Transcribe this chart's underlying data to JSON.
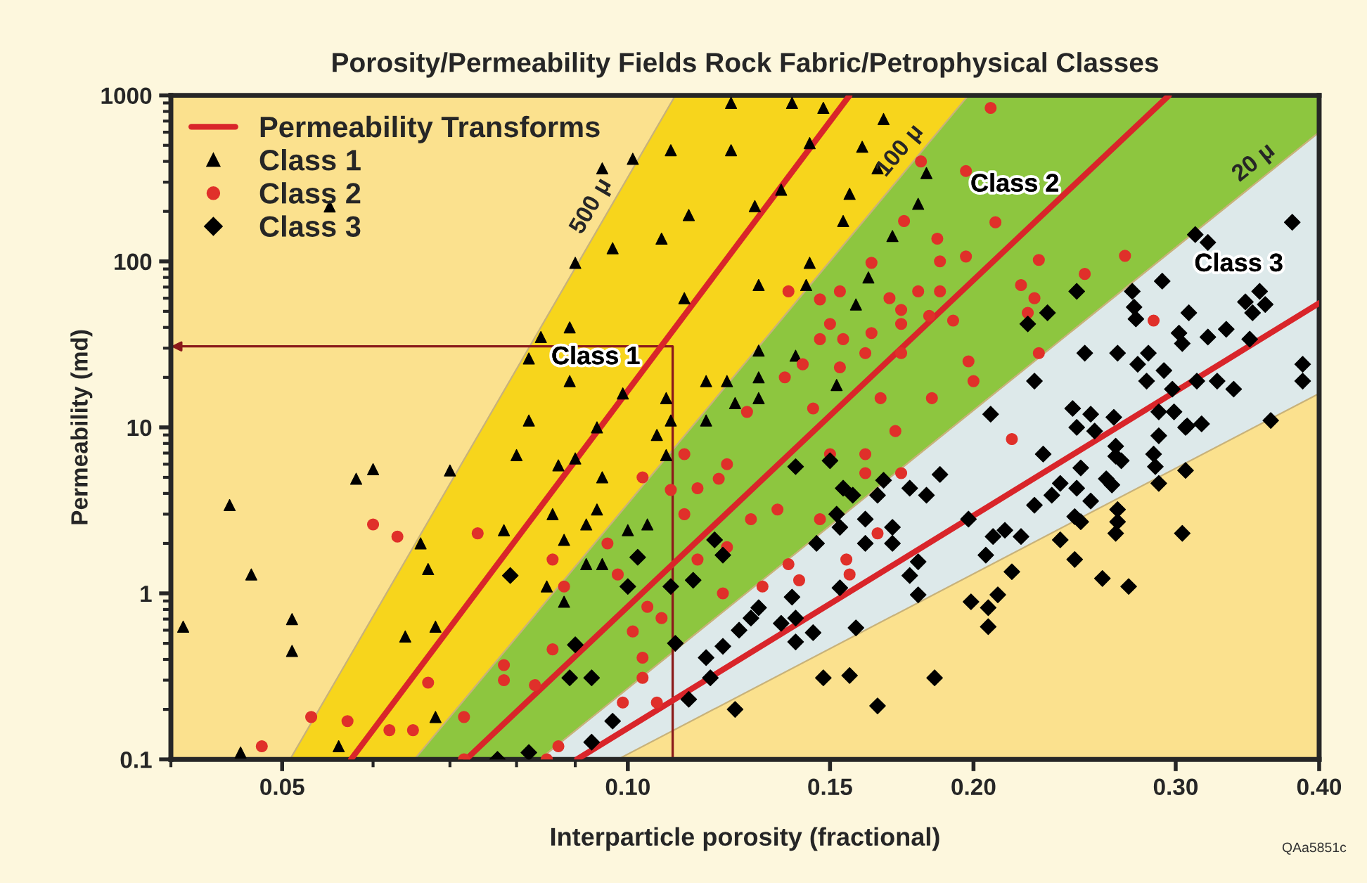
{
  "chart_data": {
    "type": "scatter",
    "title": "Porosity/Permeability Fields Rock Fabric/Petrophysical Classes",
    "xlabel": "Interparticle porosity (fractional)",
    "ylabel": "Permeability (md)",
    "log": "xy",
    "xlim": [
      0.04,
      0.4
    ],
    "ylim": [
      0.1,
      1000
    ],
    "xticks": [
      {
        "value": 0.05,
        "label": "0.05"
      },
      {
        "value": 0.1,
        "label": "0.10"
      },
      {
        "value": 0.15,
        "label": "0.15"
      },
      {
        "value": 0.2,
        "label": "0.20"
      },
      {
        "value": 0.3,
        "label": "0.30"
      },
      {
        "value": 0.4,
        "label": "0.40"
      }
    ],
    "yticks": [
      0.1,
      1,
      10,
      100,
      1000
    ],
    "legend": "top left",
    "series": [
      {
        "type": "area",
        "name": "500 μ",
        "color": "#f7d51c",
        "x": [
          0.0508,
          0.11,
          0.198,
          0.0652
        ],
        "values": [
          0.1,
          1000,
          1000,
          0.1
        ]
      },
      {
        "type": "area",
        "name": "100 μ",
        "color": "#8dc63f",
        "x": [
          0.0652,
          0.198,
          0.4,
          0.4,
          0.0838
        ],
        "values": [
          0.1,
          1000,
          1000,
          600,
          0.1
        ]
      },
      {
        "type": "area",
        "name": "20 μ",
        "color": "#dde9ea",
        "x": [
          0.0838,
          0.4,
          0.4,
          0.098
        ],
        "values": [
          0.1,
          600,
          16,
          0.1
        ]
      },
      {
        "type": "line",
        "name": "Permeability Transforms",
        "color": "#d9252a",
        "x": [
          0.0574,
          0.156
        ],
        "values": [
          0.1,
          1000
        ]
      },
      {
        "type": "line",
        "color": "#d9252a",
        "x": [
          0.0723,
          0.296
        ],
        "values": [
          0.1,
          1000
        ]
      },
      {
        "type": "line",
        "color": "#d9252a",
        "x": [
          0.0903,
          0.4
        ],
        "values": [
          0.1,
          56
        ]
      },
      {
        "name": "Class 1",
        "color": "#000000",
        "marker": "triangle",
        "x": [
          0.041,
          0.045,
          0.047,
          0.051,
          0.051,
          0.046,
          0.058,
          0.06,
          0.07,
          0.066,
          0.067,
          0.064,
          0.068,
          0.068,
          0.056,
          0.055,
          0.101,
          0.095,
          0.09,
          0.109,
          0.123,
          0.123,
          0.097,
          0.113,
          0.107,
          0.112,
          0.089,
          0.084,
          0.082,
          0.089,
          0.099,
          0.108,
          0.082,
          0.094,
          0.109,
          0.117,
          0.122,
          0.117,
          0.124,
          0.106,
          0.139,
          0.148,
          0.167,
          0.144,
          0.16,
          0.165,
          0.182,
          0.136,
          0.156,
          0.129,
          0.179,
          0.154,
          0.17,
          0.144,
          0.13,
          0.143,
          0.162,
          0.158,
          0.13,
          0.14,
          0.13,
          0.152,
          0.13,
          0.08,
          0.087,
          0.09,
          0.095,
          0.086,
          0.094,
          0.078,
          0.092,
          0.088,
          0.1,
          0.104,
          0.092,
          0.095,
          0.085,
          0.088,
          0.108
        ],
        "values": [
          0.63,
          3.4,
          1.3,
          0.7,
          0.45,
          0.11,
          4.9,
          5.6,
          5.5,
          2.0,
          1.4,
          0.55,
          0.63,
          0.18,
          0.12,
          214,
          415,
          363,
          98,
          467,
          467,
          900,
          120,
          190,
          137,
          60,
          40,
          35,
          26,
          19,
          16,
          15,
          11,
          10,
          11,
          11,
          19,
          19,
          14,
          9,
          900,
          840,
          720,
          515,
          490,
          363,
          340,
          270,
          255,
          215,
          222,
          175,
          142,
          98,
          72,
          72,
          80,
          55,
          29,
          27,
          20,
          18,
          15,
          6.8,
          5.9,
          6.5,
          5.0,
          3.0,
          3.2,
          2.4,
          2.6,
          2.1,
          2.4,
          2.6,
          1.5,
          1.5,
          1.1,
          0.89,
          6.8
        ]
      },
      {
        "name": "Class 2",
        "color": "#e0302a",
        "marker": "circle",
        "x": [
          0.048,
          0.053,
          0.057,
          0.06,
          0.063,
          0.062,
          0.065,
          0.067,
          0.072,
          0.074,
          0.072,
          0.078,
          0.078,
          0.083,
          0.086,
          0.086,
          0.088,
          0.096,
          0.098,
          0.103,
          0.109,
          0.112,
          0.115,
          0.112,
          0.12,
          0.122,
          0.122,
          0.121,
          0.101,
          0.104,
          0.107,
          0.103,
          0.103,
          0.099,
          0.106,
          0.087,
          0.085,
          0.115,
          0.207,
          0.18,
          0.197,
          0.174,
          0.209,
          0.186,
          0.163,
          0.187,
          0.197,
          0.228,
          0.271,
          0.25,
          0.138,
          0.147,
          0.153,
          0.169,
          0.179,
          0.187,
          0.22,
          0.226,
          0.173,
          0.183,
          0.192,
          0.15,
          0.163,
          0.173,
          0.154,
          0.147,
          0.161,
          0.173,
          0.153,
          0.142,
          0.137,
          0.198,
          0.166,
          0.184,
          0.2,
          0.127,
          0.145,
          0.171,
          0.228,
          0.223,
          0.287,
          0.216,
          0.173,
          0.128,
          0.135,
          0.147,
          0.155,
          0.156,
          0.141,
          0.131,
          0.138,
          0.165,
          0.15,
          0.161,
          0.161
        ],
        "values": [
          0.12,
          0.18,
          0.17,
          2.6,
          2.2,
          0.15,
          0.15,
          0.29,
          0.18,
          2.3,
          0.1,
          0.37,
          0.3,
          0.28,
          0.46,
          1.6,
          1.1,
          2.0,
          1.3,
          5.0,
          4.2,
          6.9,
          4.3,
          3.0,
          4.9,
          6.0,
          1.9,
          1.0,
          0.59,
          0.83,
          0.71,
          0.41,
          0.31,
          0.22,
          0.22,
          0.12,
          0.1,
          1.6,
          840,
          400,
          350,
          175,
          172,
          137,
          98,
          100,
          107,
          102,
          108,
          84,
          66,
          59,
          66,
          60,
          66,
          66,
          72,
          60,
          51,
          47,
          44,
          42,
          37,
          42,
          34,
          34,
          28,
          28,
          23,
          24,
          20,
          25,
          15,
          15,
          19,
          12.4,
          13,
          9.5,
          28,
          49,
          44,
          8.5,
          5.3,
          2.8,
          3.2,
          2.8,
          1.6,
          1.3,
          1.2,
          1.1,
          1.5,
          2.3,
          6.9,
          6.9,
          5.3
        ]
      },
      {
        "name": "Class 3",
        "color": "#000000",
        "marker": "diamond",
        "x": [
          0.079,
          0.082,
          0.077,
          0.089,
          0.093,
          0.09,
          0.093,
          0.097,
          0.102,
          0.1,
          0.109,
          0.114,
          0.11,
          0.113,
          0.117,
          0.121,
          0.118,
          0.124,
          0.125,
          0.128,
          0.119,
          0.121,
          0.14,
          0.15,
          0.154,
          0.157,
          0.152,
          0.153,
          0.146,
          0.161,
          0.161,
          0.167,
          0.165,
          0.17,
          0.17,
          0.176,
          0.182,
          0.187,
          0.179,
          0.179,
          0.176,
          0.158,
          0.153,
          0.145,
          0.14,
          0.139,
          0.14,
          0.136,
          0.13,
          0.148,
          0.156,
          0.165,
          0.185,
          0.199,
          0.206,
          0.206,
          0.21,
          0.216,
          0.205,
          0.208,
          0.213,
          0.22,
          0.198,
          0.226,
          0.234,
          0.23,
          0.238,
          0.246,
          0.255,
          0.248,
          0.246,
          0.253,
          0.245,
          0.248,
          0.238,
          0.245,
          0.259,
          0.261,
          0.264,
          0.266,
          0.266,
          0.267,
          0.267,
          0.266,
          0.273,
          0.269,
          0.287,
          0.288,
          0.29,
          0.29,
          0.306,
          0.306,
          0.304,
          0.316,
          0.379,
          0.312,
          0.32,
          0.292,
          0.275,
          0.276,
          0.277,
          0.308,
          0.345,
          0.355,
          0.35,
          0.359,
          0.348,
          0.332,
          0.302,
          0.304,
          0.32,
          0.284,
          0.267,
          0.278,
          0.293,
          0.283,
          0.298,
          0.313,
          0.326,
          0.337,
          0.387,
          0.387,
          0.25,
          0.226,
          0.244,
          0.253,
          0.265,
          0.29,
          0.299,
          0.307,
          0.363,
          0.207,
          0.246,
          0.223,
          0.232
        ],
        "values": [
          1.28,
          0.11,
          0.1,
          0.31,
          0.31,
          0.49,
          0.127,
          0.17,
          1.65,
          1.1,
          1.1,
          1.2,
          0.5,
          0.23,
          0.41,
          0.48,
          0.31,
          0.2,
          0.6,
          0.71,
          2.1,
          1.7,
          5.8,
          6.3,
          4.3,
          3.9,
          3.0,
          2.5,
          2.0,
          2.8,
          2.0,
          4.8,
          3.9,
          2.5,
          2.0,
          4.3,
          3.9,
          5.2,
          1.55,
          0.98,
          1.28,
          0.62,
          1.08,
          0.58,
          0.51,
          0.95,
          0.71,
          0.66,
          0.82,
          0.31,
          0.32,
          0.21,
          0.31,
          0.89,
          0.82,
          0.63,
          0.98,
          1.35,
          1.7,
          2.2,
          2.4,
          2.2,
          2.8,
          3.4,
          3.9,
          6.9,
          4.6,
          10,
          9.5,
          5.7,
          4.3,
          3.6,
          2.9,
          2.7,
          2.1,
          1.6,
          1.23,
          4.9,
          4.5,
          7.7,
          6.7,
          3.2,
          2.7,
          2.3,
          1.1,
          6.3,
          6.9,
          5.8,
          8.9,
          4.6,
          10,
          5.5,
          2.3,
          10.5,
          172,
          145,
          130,
          76,
          66,
          53,
          45,
          49,
          57,
          66,
          49,
          55,
          34,
          39,
          37,
          32,
          35,
          28,
          28,
          24,
          22,
          19,
          17,
          19,
          19,
          17,
          24,
          19,
          28,
          19,
          13,
          12,
          11.5,
          12.4,
          12.4,
          10.2,
          11,
          12,
          66,
          42,
          49
        ]
      }
    ],
    "annotations": [
      "Class 1",
      "Class 2",
      "Class 3",
      "QAa5851c"
    ]
  }
}
